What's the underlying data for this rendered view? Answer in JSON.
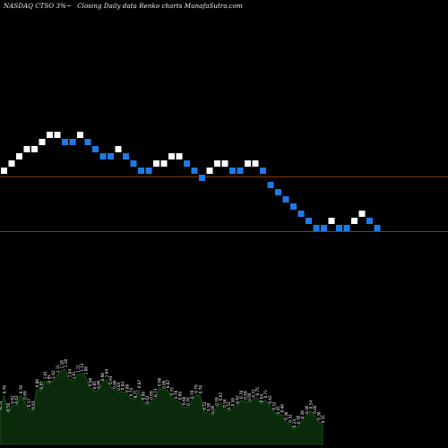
{
  "header": {
    "symbol_text": "NASDAQ CTSO 3%~",
    "description": "Closing Daily data  Renko  charts MunafaSutra.com"
  },
  "chart_data": {
    "type": "renko",
    "title": "NASDAQ CTSO 3%~ Closing Daily data Renko charts",
    "box_size_pct": 3,
    "levels": [
      14,
      15,
      16,
      17,
      17,
      18,
      19,
      19,
      18,
      18,
      19,
      18,
      17,
      16,
      16,
      17,
      16,
      15,
      14,
      14,
      15,
      15,
      16,
      16,
      15,
      14,
      13,
      14,
      15,
      15,
      14,
      14,
      15,
      15,
      14,
      12,
      11,
      10,
      9,
      8,
      7,
      6,
      6,
      7,
      6,
      6,
      7,
      8,
      7,
      6
    ],
    "brick_colors": {
      "up": "#ffffff",
      "down": "#1e7ae6"
    },
    "reference_lines": [
      {
        "level": 13.65,
        "color": "#8b3a0e"
      },
      {
        "level": 6.0,
        "color": "#8b3a0e"
      }
    ],
    "volume": {
      "values": [
        0.53,
        0.78,
        0.5,
        0.62,
        0.62,
        0.78,
        0.69,
        0.57,
        0.53,
        0.88,
        0.85,
        1.01,
        0.95,
        1.02,
        1.11,
        1.18,
        1.2,
        1.04,
        1.01,
        1.11,
        1.13,
        1.08,
        0.9,
        0.85,
        0.86,
        0.98,
        1.04,
        0.93,
        0.86,
        0.83,
        0.84,
        0.8,
        0.74,
        0.71,
        0.87,
        0.68,
        0.62,
        0.69,
        0.73,
        0.9,
        0.86,
        0.87,
        0.75,
        0.7,
        0.68,
        0.6,
        0.59,
        0.7,
        0.79,
        0.78,
        0.52,
        0.5,
        0.46,
        0.59,
        0.67,
        0.56,
        0.52,
        0.58,
        0.62,
        0.7,
        0.69,
        0.66,
        0.72,
        0.75,
        0.64,
        0.71,
        0.62,
        0.52,
        0.45,
        0.48,
        0.36,
        0.32,
        0.24,
        0.3,
        0.38,
        0.46,
        0.54,
        0.46,
        0.36,
        0.31
      ],
      "labels": [
        "0.53",
        "0.78",
        "0.50",
        "0.62",
        "0.62",
        "0.78",
        "0.69",
        "0.57",
        "0.53",
        "0.88",
        "0.85",
        "1.01",
        "0.95",
        "1.02",
        "1.11",
        "1.18",
        "1.20",
        "1.04",
        "1.01",
        "1.11",
        "1.13",
        "1.08",
        "0.90",
        "0.85",
        "0.86",
        "0.98",
        "1.04",
        "0.93",
        "0.86",
        "0.83",
        "0.84",
        "0.80",
        "0.74",
        "0.71",
        "0.87",
        "0.68",
        "0.62",
        "0.69",
        "0.73",
        "0.90",
        "0.86",
        "0.87",
        "0.75",
        "0.70",
        "0.68",
        "0.60",
        "0.59",
        "0.70",
        "0.79",
        "0.78",
        "0.52",
        "0.50",
        "0.46",
        "0.59",
        "0.67",
        "0.56",
        "0.52",
        "0.58",
        "0.62",
        "0.70",
        "0.69",
        "0.66",
        "0.72",
        "0.75",
        "0.64",
        "0.71",
        "0.62",
        "0.52",
        "0.45",
        "0.48",
        "0.36",
        "0.32",
        "0.24",
        "0.30",
        "0.38",
        "0.46",
        "0.54",
        "0.46",
        "0.36",
        "0.31"
      ],
      "fill": "#0b2a0b",
      "stroke": "#1f7a1f"
    }
  }
}
